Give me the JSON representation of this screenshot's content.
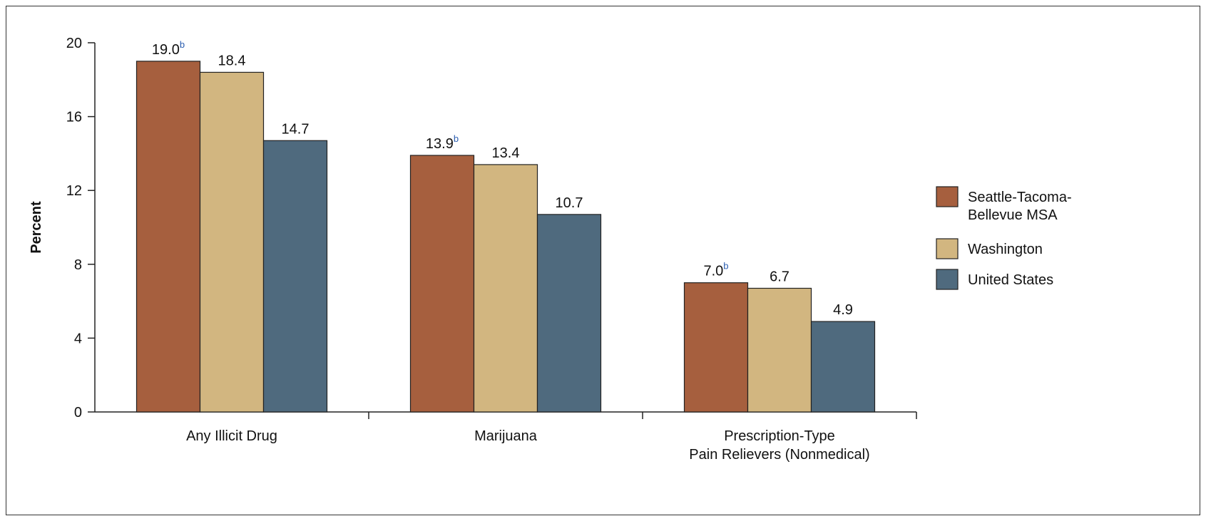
{
  "chart_data": {
    "type": "bar",
    "ylabel": "Percent",
    "ylim": [
      0,
      20
    ],
    "yticks": [
      0,
      4,
      8,
      12,
      16,
      20
    ],
    "categories": [
      [
        "Any Illicit Drug"
      ],
      [
        "Marijuana"
      ],
      [
        "Prescription-Type",
        "Pain Relievers (Nonmedical)"
      ]
    ],
    "series": [
      {
        "name": "Seattle-Tacoma-Bellevue MSA",
        "legend_lines": [
          "Seattle-Tacoma-",
          "Bellevue MSA"
        ],
        "color": "#a65f3e",
        "values": [
          19.0,
          13.9,
          7.0
        ],
        "labels": [
          "19.0",
          "13.9",
          "7.0"
        ],
        "label_sup": "b"
      },
      {
        "name": "Washington",
        "legend_lines": [
          "Washington"
        ],
        "color": "#d2b680",
        "values": [
          18.4,
          13.4,
          6.7
        ],
        "labels": [
          "18.4",
          "13.4",
          "6.7"
        ],
        "label_sup": ""
      },
      {
        "name": "United States",
        "legend_lines": [
          "United States"
        ],
        "color": "#4f6a7e",
        "values": [
          14.7,
          10.7,
          4.9
        ],
        "labels": [
          "14.7",
          "10.7",
          "4.9"
        ],
        "label_sup": ""
      }
    ],
    "legend_position": "right",
    "grid": false
  }
}
